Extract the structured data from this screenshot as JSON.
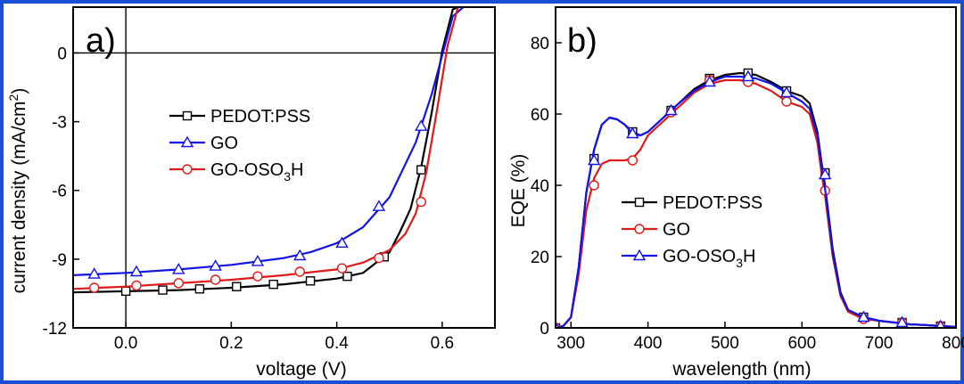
{
  "chart_data": [
    {
      "type": "line",
      "panel_label": "a)",
      "xlabel": "voltage (V)",
      "ylabel": "current density (mA/cm²)",
      "ylabel_main": "current density (mA/cm",
      "ylabel_sup": "2",
      "ylabel_tail": ")",
      "xlim": [
        -0.1,
        0.7
      ],
      "ylim": [
        -12,
        2
      ],
      "xticks": [
        0.0,
        0.2,
        0.4,
        0.6
      ],
      "xtick_labels": [
        "0.0",
        "0.2",
        "0.4",
        "0.6"
      ],
      "yticks": [
        0,
        -3,
        -6,
        -9,
        -12
      ],
      "ytick_labels": [
        "0",
        "-3",
        "-6",
        "-9",
        "-12"
      ],
      "reference_lines": {
        "x": 0,
        "y": 0
      },
      "legend_placement": "center-left",
      "series": [
        {
          "name": "PEDOT:PSS",
          "name_main": "PEDOT:PSS",
          "name_sub": "",
          "name_tail": "",
          "color": "#000000",
          "marker": "square",
          "x": [
            -0.1,
            0.0,
            0.1,
            0.2,
            0.3,
            0.4,
            0.45,
            0.5,
            0.52,
            0.54,
            0.56,
            0.58,
            0.6,
            0.62,
            0.63
          ],
          "y": [
            -10.45,
            -10.4,
            -10.35,
            -10.25,
            -10.1,
            -9.85,
            -9.6,
            -8.7,
            -7.8,
            -6.8,
            -5.0,
            -2.6,
            0.1,
            1.9,
            2.0
          ],
          "marker_x": [
            0.0,
            0.07,
            0.14,
            0.21,
            0.28,
            0.35,
            0.42,
            0.49,
            0.56
          ],
          "marker_y": [
            -10.4,
            -10.35,
            -10.3,
            -10.2,
            -10.1,
            -9.95,
            -9.75,
            -8.9,
            -5.1
          ]
        },
        {
          "name": "GO",
          "name_main": "GO",
          "name_sub": "",
          "name_tail": "",
          "color": "#1414e6",
          "marker": "triangle",
          "x": [
            -0.1,
            0.0,
            0.1,
            0.2,
            0.3,
            0.35,
            0.4,
            0.45,
            0.5,
            0.55,
            0.58,
            0.6,
            0.62,
            0.64
          ],
          "y": [
            -9.7,
            -9.6,
            -9.45,
            -9.25,
            -8.95,
            -8.7,
            -8.3,
            -7.6,
            -6.3,
            -3.9,
            -1.8,
            -0.1,
            1.6,
            2.0
          ],
          "marker_x": [
            -0.06,
            0.02,
            0.1,
            0.17,
            0.25,
            0.33,
            0.41,
            0.48,
            0.56
          ],
          "marker_y": [
            -9.65,
            -9.55,
            -9.45,
            -9.3,
            -9.1,
            -8.85,
            -8.3,
            -6.7,
            -3.2
          ]
        },
        {
          "name": "GO-OSO3H",
          "name_main": "GO-OSO",
          "name_sub": "3",
          "name_tail": "H",
          "color": "#e01a1a",
          "marker": "circle",
          "x": [
            -0.1,
            0.0,
            0.1,
            0.2,
            0.3,
            0.4,
            0.45,
            0.5,
            0.53,
            0.55,
            0.57,
            0.59,
            0.61,
            0.63
          ],
          "y": [
            -10.3,
            -10.2,
            -10.05,
            -9.9,
            -9.7,
            -9.45,
            -9.15,
            -8.6,
            -7.9,
            -7.0,
            -5.2,
            -2.5,
            0.3,
            2.0
          ],
          "marker_x": [
            -0.06,
            0.02,
            0.1,
            0.17,
            0.25,
            0.33,
            0.41,
            0.48,
            0.56
          ],
          "marker_y": [
            -10.25,
            -10.15,
            -10.05,
            -9.9,
            -9.75,
            -9.55,
            -9.4,
            -8.95,
            -6.5
          ]
        }
      ]
    },
    {
      "type": "line",
      "panel_label": "b)",
      "xlabel": "wavelength (nm)",
      "ylabel": "EQE (%)",
      "xlim": [
        280,
        800
      ],
      "ylim": [
        0,
        90
      ],
      "xticks": [
        300,
        400,
        500,
        600,
        700,
        800
      ],
      "xtick_labels": [
        "300",
        "400",
        "500",
        "600",
        "700",
        "800"
      ],
      "yticks": [
        0,
        20,
        40,
        60,
        80
      ],
      "ytick_labels": [
        "0",
        "20",
        "40",
        "60",
        "80"
      ],
      "legend_placement": "center-left",
      "series": [
        {
          "name": "PEDOT:PSS",
          "name_main": "PEDOT:PSS",
          "name_sub": "",
          "name_tail": "",
          "color": "#000000",
          "marker": "square",
          "x": [
            280,
            290,
            300,
            310,
            320,
            330,
            340,
            350,
            360,
            370,
            380,
            390,
            400,
            420,
            440,
            460,
            480,
            500,
            520,
            540,
            560,
            580,
            600,
            610,
            620,
            625,
            630,
            640,
            650,
            660,
            680,
            700,
            720,
            740,
            760,
            780,
            800
          ],
          "y": [
            0,
            0.5,
            3,
            17,
            38,
            50,
            57,
            59,
            58.5,
            57,
            55,
            54,
            55,
            59,
            63,
            67,
            69.5,
            71,
            71.5,
            71,
            69,
            66.5,
            65,
            63,
            55,
            47,
            40,
            22,
            10,
            5,
            3,
            2,
            1.5,
            1,
            0.8,
            0.5,
            0.3
          ],
          "marker_x": [
            280,
            330,
            380,
            430,
            480,
            530,
            580,
            630,
            680,
            730,
            780
          ],
          "marker_y": [
            0,
            47.5,
            55,
            61,
            70,
            71.5,
            66.5,
            43.5,
            3,
            1.5,
            0.5
          ]
        },
        {
          "name": "GO",
          "name_main": "GO",
          "name_sub": "",
          "name_tail": "",
          "color": "#e01a1a",
          "marker": "circle",
          "x": [
            280,
            290,
            300,
            310,
            320,
            330,
            340,
            350,
            360,
            370,
            380,
            390,
            400,
            420,
            440,
            460,
            480,
            500,
            520,
            540,
            560,
            580,
            600,
            610,
            620,
            625,
            630,
            640,
            650,
            660,
            680,
            700,
            720,
            740,
            760,
            780,
            800
          ],
          "y": [
            0,
            0.5,
            3,
            15,
            33,
            42,
            46,
            47,
            47,
            47,
            47.5,
            50,
            54,
            58,
            62,
            66,
            68.5,
            69.5,
            69.5,
            68.5,
            66.5,
            63.5,
            62,
            60,
            52,
            44,
            37,
            20,
            9,
            4.5,
            2.5,
            2,
            1.5,
            1,
            0.8,
            0.5,
            0.3
          ],
          "marker_x": [
            280,
            330,
            380,
            430,
            480,
            530,
            580,
            630,
            680,
            730,
            780
          ],
          "marker_y": [
            0,
            40,
            47,
            60.5,
            69.5,
            69,
            63.5,
            38.5,
            2.5,
            1.5,
            0.5
          ]
        },
        {
          "name": "GO-OSO3H",
          "name_main": "GO-OSO",
          "name_sub": "3",
          "name_tail": "H",
          "color": "#1414e6",
          "marker": "triangle",
          "x": [
            280,
            290,
            300,
            310,
            320,
            330,
            340,
            350,
            360,
            370,
            380,
            390,
            400,
            420,
            440,
            460,
            480,
            500,
            520,
            540,
            560,
            580,
            600,
            610,
            620,
            625,
            630,
            640,
            650,
            660,
            680,
            700,
            720,
            740,
            760,
            780,
            800
          ],
          "y": [
            0,
            0.5,
            3,
            17,
            38,
            50,
            57,
            59,
            58.5,
            57,
            54.5,
            54,
            55,
            59,
            63,
            66.5,
            69,
            70.5,
            70.5,
            70,
            68.5,
            66,
            63.5,
            61.5,
            54,
            46,
            39,
            21,
            9.5,
            5,
            3,
            2,
            1.5,
            1,
            0.8,
            0.5,
            0.3
          ],
          "marker_x": [
            280,
            330,
            380,
            430,
            480,
            530,
            580,
            630,
            680,
            730,
            780
          ],
          "marker_y": [
            0,
            47,
            54.5,
            61,
            69,
            70.5,
            66,
            43,
            3,
            1.5,
            0.5
          ]
        }
      ]
    }
  ],
  "colors": {
    "frame": "#1a4ed6",
    "axis": "#000000"
  }
}
